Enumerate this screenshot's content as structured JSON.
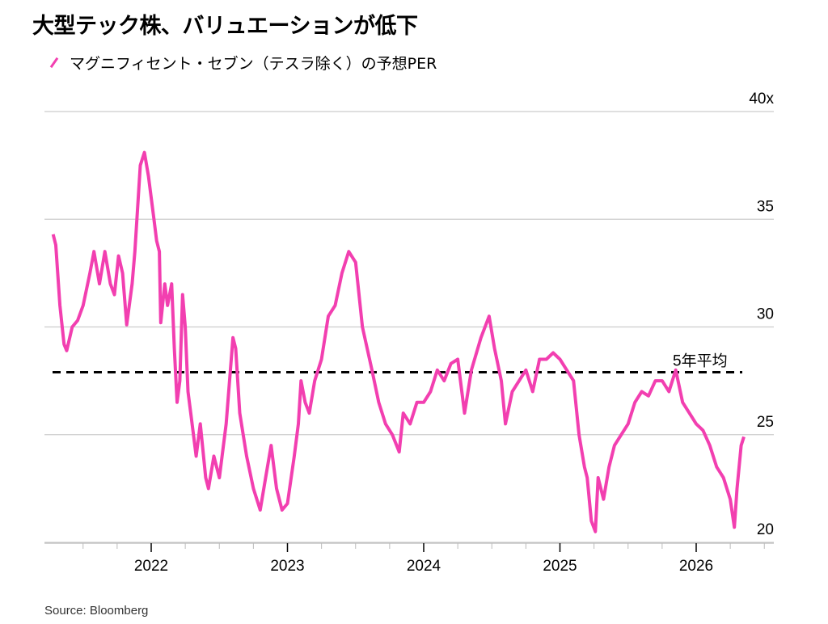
{
  "title": "大型テック株、バリュエーションが低下",
  "legend": "マグニフィセント・セブン（テスラ除く）の予想PER",
  "source": "Source: Bloomberg",
  "colors": {
    "series": "#f23fb0",
    "grid": "#cccccc",
    "average": "#000000"
  },
  "chart_data": {
    "type": "line",
    "title": "大型テック株、バリュエーションが低下",
    "xlabel": "",
    "ylabel": "",
    "ylim": [
      20,
      40
    ],
    "xlim": [
      2021.2,
      2026.55
    ],
    "y_ticks": [
      {
        "v": 40,
        "label": "40x"
      },
      {
        "v": 35,
        "label": "35"
      },
      {
        "v": 30,
        "label": "30"
      },
      {
        "v": 25,
        "label": "25"
      },
      {
        "v": 20,
        "label": "20"
      }
    ],
    "x_ticks": [
      {
        "v": 2022,
        "label": "2022"
      },
      {
        "v": 2023,
        "label": "2023"
      },
      {
        "v": 2024,
        "label": "2024"
      },
      {
        "v": 2025,
        "label": "2025"
      },
      {
        "v": 2026,
        "label": "2026"
      }
    ],
    "grid": true,
    "reference_line": {
      "value": 27.9,
      "label": "5年平均"
    },
    "series": [
      {
        "name": "マグニフィセント・セブン（テスラ除く）の予想PER",
        "points": [
          [
            2021.28,
            34.3
          ],
          [
            2021.3,
            33.8
          ],
          [
            2021.33,
            31
          ],
          [
            2021.36,
            29.2
          ],
          [
            2021.38,
            28.9
          ],
          [
            2021.42,
            30
          ],
          [
            2021.46,
            30.3
          ],
          [
            2021.5,
            31
          ],
          [
            2021.55,
            32.5
          ],
          [
            2021.58,
            33.5
          ],
          [
            2021.62,
            32
          ],
          [
            2021.66,
            33.5
          ],
          [
            2021.7,
            32
          ],
          [
            2021.73,
            31.5
          ],
          [
            2021.76,
            33.3
          ],
          [
            2021.79,
            32.5
          ],
          [
            2021.82,
            30.1
          ],
          [
            2021.86,
            32
          ],
          [
            2021.88,
            33.5
          ],
          [
            2021.92,
            37.5
          ],
          [
            2021.95,
            38.1
          ],
          [
            2021.98,
            37
          ],
          [
            2022.0,
            36
          ],
          [
            2022.02,
            35
          ],
          [
            2022.04,
            34
          ],
          [
            2022.06,
            33.5
          ],
          [
            2022.07,
            30.2
          ],
          [
            2022.1,
            32
          ],
          [
            2022.12,
            31
          ],
          [
            2022.15,
            32
          ],
          [
            2022.17,
            29
          ],
          [
            2022.19,
            26.5
          ],
          [
            2022.21,
            27.5
          ],
          [
            2022.23,
            31.5
          ],
          [
            2022.25,
            30
          ],
          [
            2022.27,
            27
          ],
          [
            2022.29,
            26
          ],
          [
            2022.33,
            24
          ],
          [
            2022.36,
            25.5
          ],
          [
            2022.4,
            23
          ],
          [
            2022.42,
            22.5
          ],
          [
            2022.46,
            24
          ],
          [
            2022.5,
            23
          ],
          [
            2022.55,
            25.5
          ],
          [
            2022.6,
            29.5
          ],
          [
            2022.62,
            29
          ],
          [
            2022.65,
            26
          ],
          [
            2022.7,
            24
          ],
          [
            2022.75,
            22.5
          ],
          [
            2022.8,
            21.5
          ],
          [
            2022.84,
            23
          ],
          [
            2022.88,
            24.5
          ],
          [
            2022.92,
            22.5
          ],
          [
            2022.96,
            21.5
          ],
          [
            2023.0,
            21.8
          ],
          [
            2023.05,
            24
          ],
          [
            2023.08,
            25.5
          ],
          [
            2023.1,
            27.5
          ],
          [
            2023.13,
            26.5
          ],
          [
            2023.16,
            26
          ],
          [
            2023.2,
            27.5
          ],
          [
            2023.25,
            28.5
          ],
          [
            2023.3,
            30.5
          ],
          [
            2023.35,
            31
          ],
          [
            2023.4,
            32.5
          ],
          [
            2023.45,
            33.5
          ],
          [
            2023.5,
            33
          ],
          [
            2023.55,
            30
          ],
          [
            2023.62,
            28
          ],
          [
            2023.67,
            26.5
          ],
          [
            2023.72,
            25.5
          ],
          [
            2023.77,
            25
          ],
          [
            2023.82,
            24.2
          ],
          [
            2023.85,
            26
          ],
          [
            2023.9,
            25.5
          ],
          [
            2023.95,
            26.5
          ],
          [
            2024.0,
            26.5
          ],
          [
            2024.05,
            27
          ],
          [
            2024.1,
            28
          ],
          [
            2024.15,
            27.5
          ],
          [
            2024.2,
            28.3
          ],
          [
            2024.25,
            28.5
          ],
          [
            2024.3,
            26
          ],
          [
            2024.35,
            28
          ],
          [
            2024.42,
            29.5
          ],
          [
            2024.48,
            30.5
          ],
          [
            2024.52,
            29
          ],
          [
            2024.57,
            27.5
          ],
          [
            2024.6,
            25.5
          ],
          [
            2024.65,
            27
          ],
          [
            2024.7,
            27.5
          ],
          [
            2024.75,
            28
          ],
          [
            2024.8,
            27
          ],
          [
            2024.85,
            28.5
          ],
          [
            2024.9,
            28.5
          ],
          [
            2024.95,
            28.8
          ],
          [
            2025.0,
            28.5
          ],
          [
            2025.05,
            28
          ],
          [
            2025.1,
            27.5
          ],
          [
            2025.14,
            25
          ],
          [
            2025.18,
            23.5
          ],
          [
            2025.2,
            23
          ],
          [
            2025.23,
            21
          ],
          [
            2025.26,
            20.5
          ],
          [
            2025.28,
            23
          ],
          [
            2025.32,
            22
          ],
          [
            2025.36,
            23.5
          ],
          [
            2025.4,
            24.5
          ],
          [
            2025.45,
            25
          ],
          [
            2025.5,
            25.5
          ],
          [
            2025.55,
            26.5
          ],
          [
            2025.6,
            27
          ],
          [
            2025.65,
            26.8
          ],
          [
            2025.7,
            27.5
          ],
          [
            2025.75,
            27.5
          ],
          [
            2025.8,
            27
          ],
          [
            2025.85,
            28
          ],
          [
            2025.9,
            26.5
          ],
          [
            2025.95,
            26
          ],
          [
            2026.0,
            25.5
          ],
          [
            2026.05,
            25.2
          ],
          [
            2026.1,
            24.5
          ],
          [
            2026.15,
            23.5
          ],
          [
            2026.2,
            23
          ],
          [
            2026.25,
            22
          ],
          [
            2026.28,
            20.7
          ],
          [
            2026.3,
            22.5
          ],
          [
            2026.33,
            24.5
          ],
          [
            2026.35,
            24.9
          ]
        ]
      }
    ]
  }
}
